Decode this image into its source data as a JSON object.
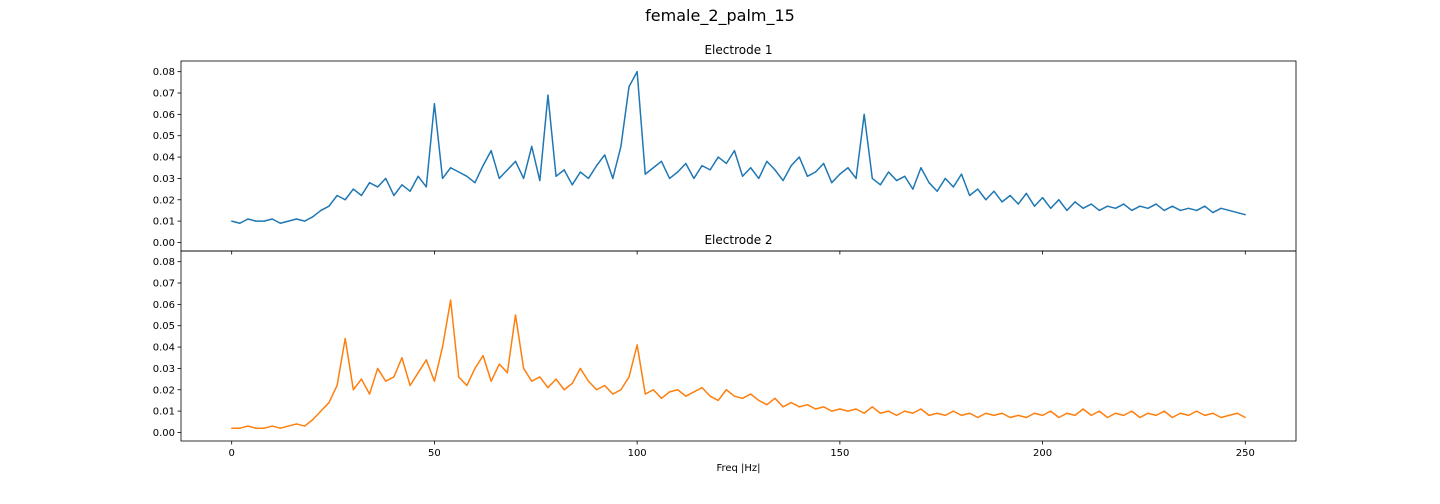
{
  "figure": {
    "title": "female_2_palm_15"
  },
  "chart_data": [
    {
      "type": "line",
      "title": "Electrode 1",
      "xlabel": "",
      "ylabel": "",
      "xlim": [
        -12.5,
        262.5
      ],
      "ylim": [
        -0.004,
        0.085
      ],
      "xticks": [
        0,
        50,
        100,
        150,
        200,
        250
      ],
      "xtick_labels": [
        "0",
        "50",
        "100",
        "150",
        "200",
        "250"
      ],
      "yticks": [
        0,
        0.01,
        0.02,
        0.03,
        0.04,
        0.05,
        0.06,
        0.07,
        0.08
      ],
      "ytick_labels": [
        "0.00",
        "0.01",
        "0.02",
        "0.03",
        "0.04",
        "0.05",
        "0.06",
        "0.07",
        "0.08"
      ],
      "grid": false,
      "color": "#1f77b4",
      "series": [
        {
          "x": [
            0,
            2,
            4,
            6,
            8,
            10,
            12,
            14,
            16,
            18,
            20,
            22,
            24,
            26,
            28,
            30,
            32,
            34,
            36,
            38,
            40,
            42,
            44,
            46,
            48,
            50,
            52,
            54,
            56,
            58,
            60,
            62,
            64,
            66,
            68,
            70,
            72,
            74,
            76,
            78,
            80,
            82,
            84,
            86,
            88,
            90,
            92,
            94,
            96,
            98,
            100,
            102,
            104,
            106,
            108,
            110,
            112,
            114,
            116,
            118,
            120,
            122,
            124,
            126,
            128,
            130,
            132,
            134,
            136,
            138,
            140,
            142,
            144,
            146,
            148,
            150,
            152,
            154,
            156,
            158,
            160,
            162,
            164,
            166,
            168,
            170,
            172,
            174,
            176,
            178,
            180,
            182,
            184,
            186,
            188,
            190,
            192,
            194,
            196,
            198,
            200,
            202,
            204,
            206,
            208,
            210,
            212,
            214,
            216,
            218,
            220,
            222,
            224,
            226,
            228,
            230,
            232,
            234,
            236,
            238,
            240,
            242,
            244,
            246,
            248,
            250
          ],
          "values": [
            0.01,
            0.009,
            0.011,
            0.01,
            0.01,
            0.011,
            0.009,
            0.01,
            0.011,
            0.01,
            0.012,
            0.015,
            0.017,
            0.022,
            0.02,
            0.025,
            0.022,
            0.028,
            0.026,
            0.03,
            0.022,
            0.027,
            0.024,
            0.031,
            0.026,
            0.065,
            0.03,
            0.035,
            0.033,
            0.031,
            0.028,
            0.036,
            0.043,
            0.03,
            0.034,
            0.038,
            0.03,
            0.045,
            0.029,
            0.069,
            0.031,
            0.034,
            0.027,
            0.033,
            0.03,
            0.036,
            0.041,
            0.03,
            0.045,
            0.073,
            0.08,
            0.032,
            0.035,
            0.038,
            0.03,
            0.033,
            0.037,
            0.03,
            0.036,
            0.034,
            0.04,
            0.037,
            0.043,
            0.031,
            0.035,
            0.03,
            0.038,
            0.034,
            0.029,
            0.036,
            0.04,
            0.031,
            0.033,
            0.037,
            0.028,
            0.032,
            0.035,
            0.03,
            0.06,
            0.03,
            0.027,
            0.033,
            0.029,
            0.031,
            0.025,
            0.035,
            0.028,
            0.024,
            0.03,
            0.026,
            0.032,
            0.022,
            0.025,
            0.02,
            0.024,
            0.019,
            0.022,
            0.018,
            0.023,
            0.017,
            0.021,
            0.016,
            0.02,
            0.015,
            0.019,
            0.016,
            0.018,
            0.015,
            0.017,
            0.016,
            0.018,
            0.015,
            0.017,
            0.016,
            0.018,
            0.015,
            0.017,
            0.015,
            0.016,
            0.015,
            0.017,
            0.014,
            0.016,
            0.015,
            0.014,
            0.013
          ]
        }
      ]
    },
    {
      "type": "line",
      "title": "Electrode 2",
      "xlabel": "Freq |Hz|",
      "ylabel": "",
      "xlim": [
        -12.5,
        262.5
      ],
      "ylim": [
        -0.004,
        0.085
      ],
      "xticks": [
        0,
        50,
        100,
        150,
        200,
        250
      ],
      "xtick_labels": [
        "0",
        "50",
        "100",
        "150",
        "200",
        "250"
      ],
      "yticks": [
        0,
        0.01,
        0.02,
        0.03,
        0.04,
        0.05,
        0.06,
        0.07,
        0.08
      ],
      "ytick_labels": [
        "0.00",
        "0.01",
        "0.02",
        "0.03",
        "0.04",
        "0.05",
        "0.06",
        "0.07",
        "0.08"
      ],
      "grid": false,
      "color": "#ff7f0e",
      "series": [
        {
          "x": [
            0,
            2,
            4,
            6,
            8,
            10,
            12,
            14,
            16,
            18,
            20,
            22,
            24,
            26,
            28,
            30,
            32,
            34,
            36,
            38,
            40,
            42,
            44,
            46,
            48,
            50,
            52,
            54,
            56,
            58,
            60,
            62,
            64,
            66,
            68,
            70,
            72,
            74,
            76,
            78,
            80,
            82,
            84,
            86,
            88,
            90,
            92,
            94,
            96,
            98,
            100,
            102,
            104,
            106,
            108,
            110,
            112,
            114,
            116,
            118,
            120,
            122,
            124,
            126,
            128,
            130,
            132,
            134,
            136,
            138,
            140,
            142,
            144,
            146,
            148,
            150,
            152,
            154,
            156,
            158,
            160,
            162,
            164,
            166,
            168,
            170,
            172,
            174,
            176,
            178,
            180,
            182,
            184,
            186,
            188,
            190,
            192,
            194,
            196,
            198,
            200,
            202,
            204,
            206,
            208,
            210,
            212,
            214,
            216,
            218,
            220,
            222,
            224,
            226,
            228,
            230,
            232,
            234,
            236,
            238,
            240,
            242,
            244,
            246,
            248,
            250
          ],
          "values": [
            0.002,
            0.002,
            0.003,
            0.002,
            0.002,
            0.003,
            0.002,
            0.003,
            0.004,
            0.003,
            0.006,
            0.01,
            0.014,
            0.022,
            0.044,
            0.02,
            0.025,
            0.018,
            0.03,
            0.024,
            0.026,
            0.035,
            0.022,
            0.028,
            0.034,
            0.024,
            0.04,
            0.062,
            0.026,
            0.022,
            0.03,
            0.036,
            0.024,
            0.032,
            0.028,
            0.055,
            0.03,
            0.024,
            0.026,
            0.021,
            0.025,
            0.02,
            0.023,
            0.03,
            0.024,
            0.02,
            0.022,
            0.018,
            0.02,
            0.026,
            0.041,
            0.018,
            0.02,
            0.016,
            0.019,
            0.02,
            0.017,
            0.019,
            0.021,
            0.017,
            0.015,
            0.02,
            0.017,
            0.016,
            0.018,
            0.015,
            0.013,
            0.016,
            0.012,
            0.014,
            0.012,
            0.013,
            0.011,
            0.012,
            0.01,
            0.011,
            0.01,
            0.011,
            0.009,
            0.012,
            0.009,
            0.01,
            0.008,
            0.01,
            0.009,
            0.011,
            0.008,
            0.009,
            0.008,
            0.01,
            0.008,
            0.009,
            0.007,
            0.009,
            0.008,
            0.009,
            0.007,
            0.008,
            0.007,
            0.009,
            0.008,
            0.01,
            0.007,
            0.009,
            0.008,
            0.011,
            0.008,
            0.01,
            0.007,
            0.009,
            0.008,
            0.01,
            0.007,
            0.009,
            0.008,
            0.01,
            0.007,
            0.009,
            0.008,
            0.01,
            0.008,
            0.009,
            0.007,
            0.008,
            0.009,
            0.007
          ]
        }
      ]
    }
  ]
}
